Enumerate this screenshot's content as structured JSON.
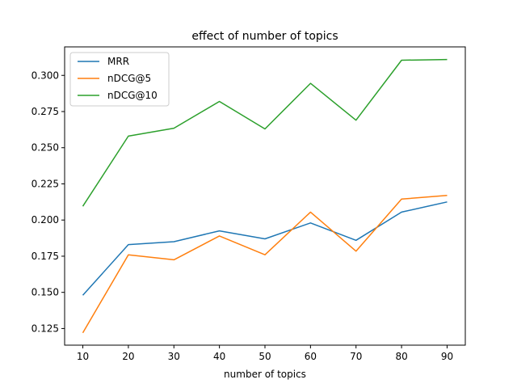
{
  "chart_data": {
    "type": "line",
    "title": "effect of number of topics",
    "xlabel": "number of topics",
    "ylabel": "",
    "x": [
      10,
      20,
      30,
      40,
      50,
      60,
      70,
      80,
      90
    ],
    "xticks": [
      "10",
      "20",
      "30",
      "40",
      "50",
      "60",
      "70",
      "80",
      "90"
    ],
    "xlim": [
      6,
      94
    ],
    "ylim": [
      0.1135,
      0.3197
    ],
    "yticks": [
      "0.125",
      "0.150",
      "0.175",
      "0.200",
      "0.225",
      "0.250",
      "0.275",
      "0.300"
    ],
    "grid": false,
    "legend_position": "top-left",
    "series": [
      {
        "name": "MRR",
        "color": "#1f77b4",
        "values": [
          0.148,
          0.183,
          0.185,
          0.1925,
          0.187,
          0.198,
          0.186,
          0.2055,
          0.2125
        ]
      },
      {
        "name": "nDCG@5",
        "color": "#ff7f0e",
        "values": [
          0.122,
          0.176,
          0.1725,
          0.189,
          0.176,
          0.2055,
          0.1785,
          0.2145,
          0.217
        ]
      },
      {
        "name": "nDCG@10",
        "color": "#2ca02c",
        "values": [
          0.2095,
          0.258,
          0.2635,
          0.282,
          0.263,
          0.2945,
          0.269,
          0.3105,
          0.311
        ]
      }
    ]
  }
}
